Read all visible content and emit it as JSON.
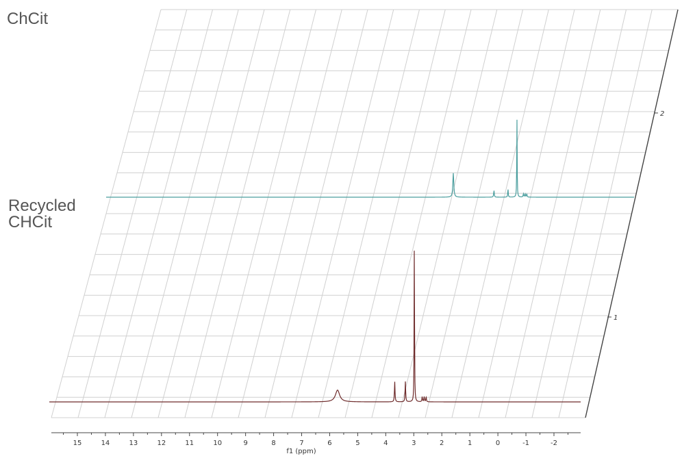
{
  "chart_data": {
    "type": "line",
    "subtype": "stacked-nmr-spectra",
    "title": "",
    "xlabel": "f1 (ppm)",
    "ylabel": "",
    "x_reversed": true,
    "xlim": [
      15.8,
      -2.9
    ],
    "x_ticks": [
      "15",
      "14",
      "13",
      "12",
      "11",
      "10",
      "9",
      "8",
      "7",
      "6",
      "5",
      "4",
      "3",
      "2",
      "1",
      "0",
      "-1",
      "-2"
    ],
    "z_ticks": [
      "1",
      "2"
    ],
    "grid": true,
    "colors": {
      "top": "#4a9e9e",
      "bottom": "#6e2b2b",
      "grid": "#d0d0d0",
      "axis": "#444444"
    },
    "series": [
      {
        "name": "Recycled\nCHCit",
        "layer": 1,
        "color": "#6e2b2b",
        "peaks": [
          {
            "ppm": 5.72,
            "height": 0.07,
            "width": 0.09
          },
          {
            "ppm": 3.68,
            "height": 0.12,
            "width": 0.012
          },
          {
            "ppm": 3.3,
            "height": 0.12,
            "width": 0.012
          },
          {
            "ppm": 2.98,
            "height": 1.0,
            "width": 0.008
          },
          {
            "ppm": 2.7,
            "height": 0.03,
            "width": 0.012
          },
          {
            "ppm": 2.63,
            "height": 0.03,
            "width": 0.012
          },
          {
            "ppm": 2.56,
            "height": 0.03,
            "width": 0.012
          }
        ]
      },
      {
        "name": "ChCit",
        "layer": 2,
        "color": "#4a9e9e",
        "peaks": [
          {
            "ppm": 3.3,
            "height": 0.14,
            "width": 0.02
          },
          {
            "ppm": 1.85,
            "height": 0.04,
            "width": 0.012
          },
          {
            "ppm": 1.35,
            "height": 0.05,
            "width": 0.01
          },
          {
            "ppm": 1.03,
            "height": 0.46,
            "width": 0.008
          },
          {
            "ppm": 0.8,
            "height": 0.02,
            "width": 0.012
          },
          {
            "ppm": 0.74,
            "height": 0.02,
            "width": 0.012
          },
          {
            "ppm": 0.68,
            "height": 0.02,
            "width": 0.012
          }
        ]
      }
    ]
  }
}
